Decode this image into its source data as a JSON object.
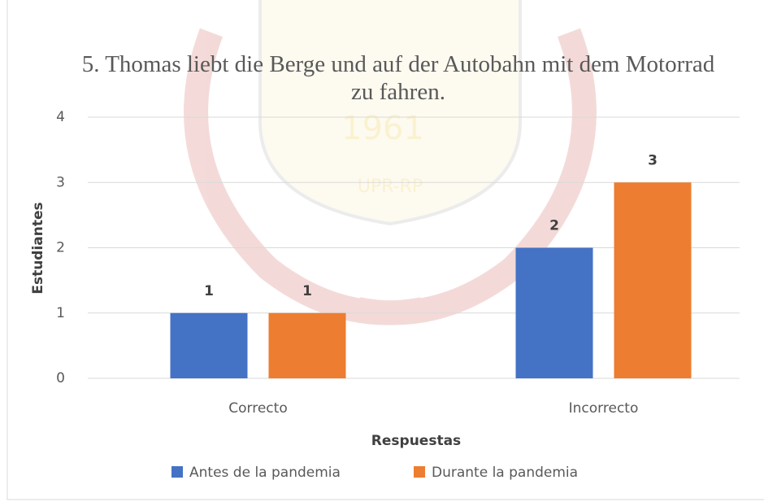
{
  "chart_data": {
    "type": "bar",
    "title": "5. Thomas liebt die Berge und auf der Autobahn mit dem Motorrad zu fahren.",
    "categories": [
      "Correcto",
      "Incorrecto"
    ],
    "series": [
      {
        "name": "Antes de la pandemia",
        "color": "#4472c4",
        "values": [
          1,
          2
        ]
      },
      {
        "name": "Durante la pandemia",
        "color": "#ed7d31",
        "values": [
          1,
          3
        ]
      }
    ],
    "ylim": [
      0,
      4
    ],
    "yticks": [
      0,
      1,
      2,
      3,
      4
    ],
    "grid": true,
    "y_label": "Estudiantes",
    "x_label": "Respuestas",
    "legend": "bottom"
  },
  "watermark": [
    "1961",
    "UPR-RP"
  ]
}
